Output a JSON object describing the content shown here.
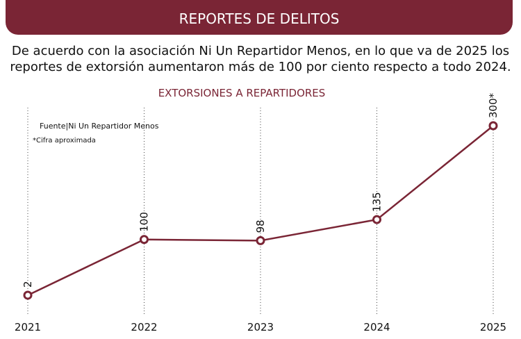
{
  "header": {
    "title": "REPORTES DE DELITOS"
  },
  "subtitle": "De acuerdo con la asociación Ni Un Repartidor Menos, en lo que va de 2025 los reportes de extorsión aumentaron más de 100 por ciento respecto a todo 2024.",
  "chart_data": {
    "type": "line",
    "title": "EXTORSIONES A REPARTIDORES",
    "source": "Fuente|Ni Un Repartidor Menos",
    "note": "*Cifra aproximada",
    "categories": [
      "2021",
      "2022",
      "2023",
      "2024",
      "2025"
    ],
    "values": [
      2,
      100,
      98,
      135,
      300
    ],
    "value_labels": [
      "2",
      "100",
      "98",
      "135",
      "300*"
    ],
    "color": "#7a2535",
    "ylim": [
      0,
      300
    ]
  }
}
